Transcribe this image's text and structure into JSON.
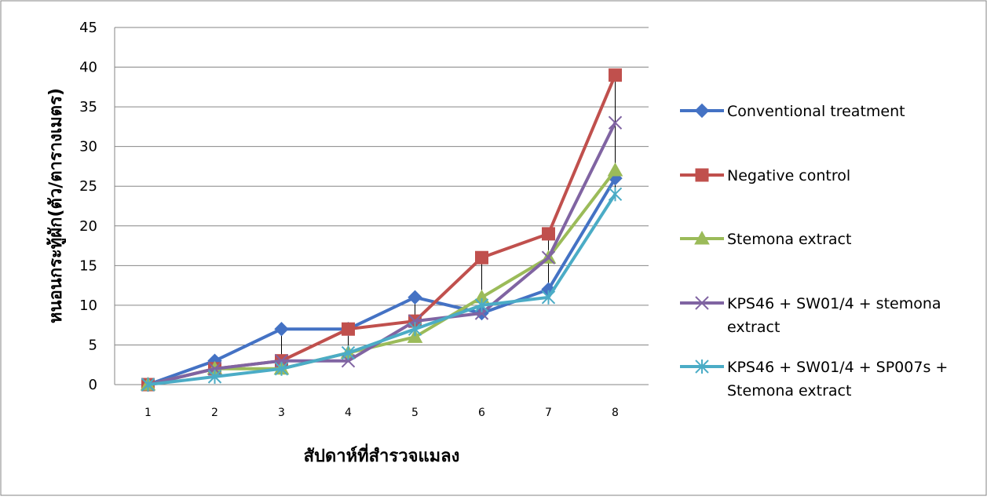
{
  "chart_data": {
    "type": "line",
    "title": "",
    "xlabel": "สัปดาห์ที่สำรวจแมลง",
    "ylabel": "หนอนกระทู้ผัก(ตัว/ตารางเมตร)",
    "categories": [
      "1",
      "2",
      "3",
      "4",
      "5",
      "6",
      "7",
      "8"
    ],
    "ylim": [
      0,
      45
    ],
    "yticks": [
      "0",
      "5",
      "10",
      "15",
      "20",
      "25",
      "30",
      "35",
      "40",
      "45"
    ],
    "grid": "horizontal",
    "legend_position": "right",
    "series": [
      {
        "name": "Conventional treatment",
        "color": "#4472C4",
        "marker": "diamond",
        "values": [
          0,
          3,
          7,
          7,
          11,
          9,
          12,
          26
        ]
      },
      {
        "name": "Negative control",
        "color": "#C0504D",
        "marker": "square",
        "values": [
          0,
          2,
          3,
          7,
          8,
          16,
          19,
          39
        ]
      },
      {
        "name": "Stemona extract",
        "color": "#9BBB59",
        "marker": "triangle",
        "values": [
          0,
          2,
          2,
          4,
          6,
          11,
          16,
          27
        ]
      },
      {
        "name": "KPS46 + SW01/4 + stemona extract",
        "legend_lines": [
          "KPS46 + SW01/4 + stemona",
          "extract"
        ],
        "color": "#8064A2",
        "marker": "x",
        "values": [
          0,
          2,
          3,
          3,
          8,
          9,
          16,
          33
        ]
      },
      {
        "name": "KPS46 + SW01/4 + SP007s + Stemona extract",
        "legend_lines": [
          "KPS46 + SW01/4 + SP007s +",
          "Stemona extract"
        ],
        "color": "#4BACC6",
        "marker": "asterisk",
        "values": [
          0,
          1,
          2,
          4,
          7,
          10,
          11,
          24
        ]
      }
    ],
    "error_bar_color": "#000000"
  }
}
